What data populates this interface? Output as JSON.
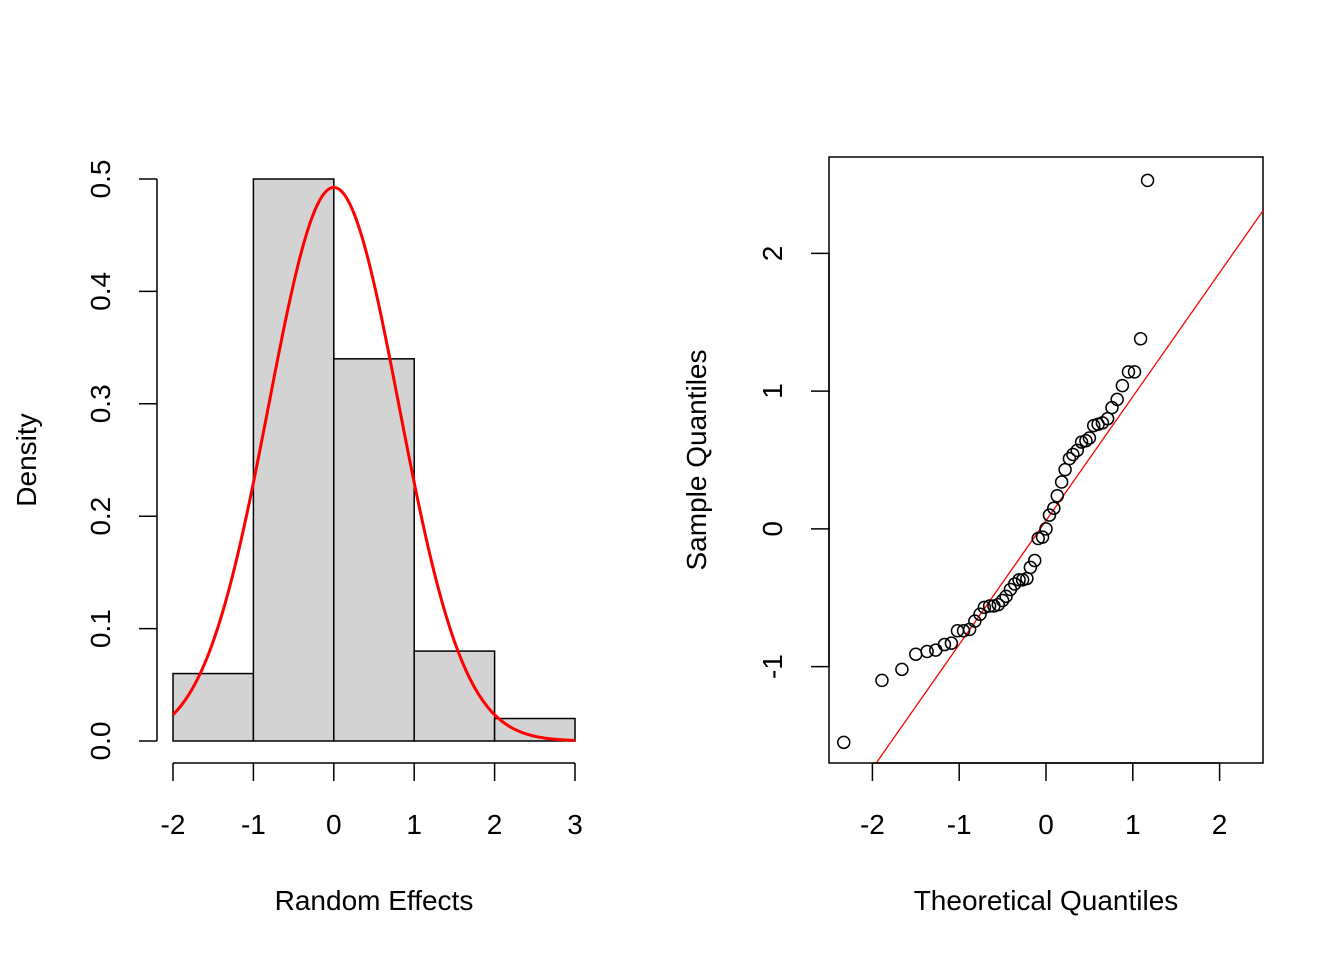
{
  "chart_data": [
    {
      "type": "bar",
      "subtype": "histogram",
      "title": "",
      "xlabel": "Random Effects",
      "ylabel": "Density",
      "xlim": [
        -2,
        3
      ],
      "ylim": [
        0,
        0.5
      ],
      "xticks": [
        "-2",
        "-1",
        "0",
        "1",
        "2",
        "3"
      ],
      "yticks": [
        "0.0",
        "0.1",
        "0.2",
        "0.3",
        "0.4",
        "0.5"
      ],
      "bins": [
        {
          "from": -2,
          "to": -1,
          "density": 0.06
        },
        {
          "from": -1,
          "to": 0,
          "density": 0.5
        },
        {
          "from": 0,
          "to": 1,
          "density": 0.34
        },
        {
          "from": 1,
          "to": 2,
          "density": 0.08
        },
        {
          "from": 2,
          "to": 3,
          "density": 0.02
        }
      ],
      "bar_color": "#d3d3d3",
      "overlay": {
        "type": "normal_density",
        "mean": 0.0,
        "sd": 0.81,
        "color": "#ff0000"
      },
      "grid": false
    },
    {
      "type": "scatter",
      "subtype": "qq-plot",
      "title": "",
      "xlabel": "Theoretical Quantiles",
      "ylabel": "Sample Quantiles",
      "xlim": [
        -2.5,
        2.5
      ],
      "ylim": [
        -1.7,
        2.7
      ],
      "xticks": [
        "-2",
        "-1",
        "0",
        "1",
        "2"
      ],
      "yticks": [
        "-1",
        "0",
        "1",
        "2"
      ],
      "points": [
        [
          -2.33,
          -1.55
        ],
        [
          -1.89,
          -1.1
        ],
        [
          -1.66,
          -1.02
        ],
        [
          -1.5,
          -0.91
        ],
        [
          -1.37,
          -0.89
        ],
        [
          -1.27,
          -0.88
        ],
        [
          -1.17,
          -0.84
        ],
        [
          -1.09,
          -0.83
        ],
        [
          -1.02,
          -0.74
        ],
        [
          -0.95,
          -0.74
        ],
        [
          -0.88,
          -0.73
        ],
        [
          -0.82,
          -0.67
        ],
        [
          -0.76,
          -0.62
        ],
        [
          -0.71,
          -0.57
        ],
        [
          -0.65,
          -0.56
        ],
        [
          -0.6,
          -0.56
        ],
        [
          -0.55,
          -0.55
        ],
        [
          -0.5,
          -0.52
        ],
        [
          -0.46,
          -0.49
        ],
        [
          -0.41,
          -0.44
        ],
        [
          -0.36,
          -0.4
        ],
        [
          -0.31,
          -0.37
        ],
        [
          -0.27,
          -0.37
        ],
        [
          -0.22,
          -0.36
        ],
        [
          -0.18,
          -0.28
        ],
        [
          -0.13,
          -0.23
        ],
        [
          -0.09,
          -0.07
        ],
        [
          -0.04,
          -0.06
        ],
        [
          0.0,
          0.0
        ],
        [
          0.04,
          0.1
        ],
        [
          0.09,
          0.15
        ],
        [
          0.13,
          0.24
        ],
        [
          0.18,
          0.34
        ],
        [
          0.22,
          0.43
        ],
        [
          0.27,
          0.51
        ],
        [
          0.31,
          0.54
        ],
        [
          0.36,
          0.57
        ],
        [
          0.41,
          0.63
        ],
        [
          0.46,
          0.64
        ],
        [
          0.5,
          0.66
        ],
        [
          0.55,
          0.75
        ],
        [
          0.6,
          0.76
        ],
        [
          0.65,
          0.77
        ],
        [
          0.71,
          0.8
        ],
        [
          0.76,
          0.88
        ],
        [
          0.82,
          0.94
        ],
        [
          0.88,
          1.04
        ],
        [
          0.95,
          1.14
        ],
        [
          1.02,
          1.14
        ],
        [
          1.09,
          1.38
        ],
        [
          1.17,
          2.53
        ]
      ],
      "reference_line": {
        "intercept": 0.06,
        "slope": 0.9,
        "color": "#ff0000"
      },
      "grid": false
    }
  ]
}
